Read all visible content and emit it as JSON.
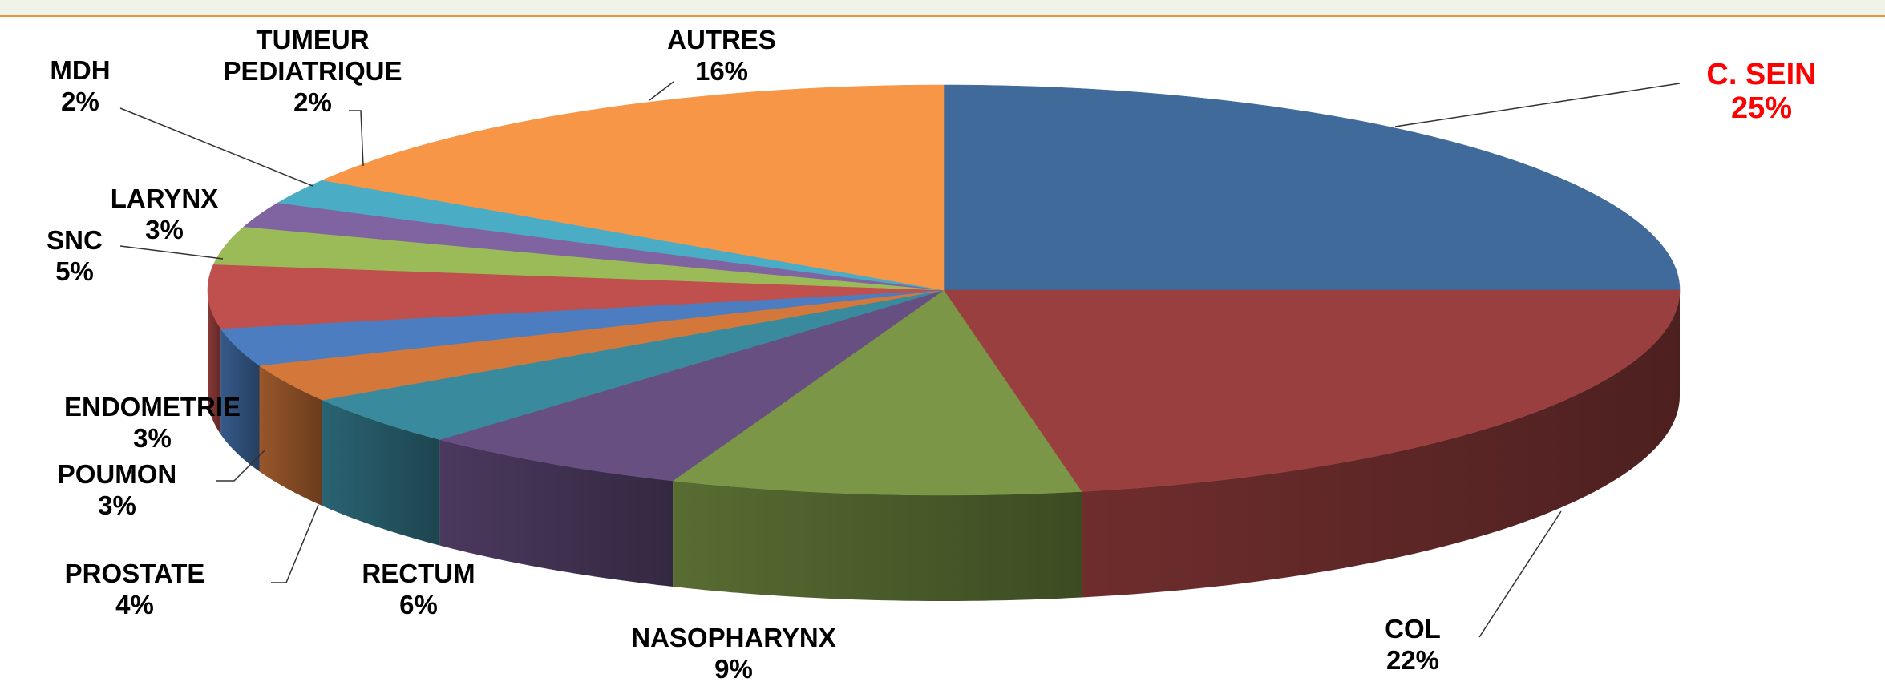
{
  "chart_data": {
    "type": "pie3d",
    "categories": [
      "C. SEIN",
      "COL",
      "NASOPHARYNX",
      "RECTUM",
      "PROSTATE",
      "POUMON",
      "ENDOMETRIE",
      "SNC",
      "LARYNX",
      "MDH",
      "TUMEUR PEDIATRIQUE",
      "AUTRES"
    ],
    "values": [
      25,
      22,
      9,
      6,
      4,
      3,
      3,
      5,
      3,
      2,
      2,
      16
    ],
    "value_labels": [
      "25%",
      "22%",
      "9%",
      "6%",
      "4%",
      "3%",
      "3%",
      "5%",
      "3%",
      "2%",
      "2%",
      "16%"
    ],
    "colors": [
      "#3f6a9a",
      "#9a3f3f",
      "#7a9646",
      "#684f82",
      "#3a8a9e",
      "#d3783a",
      "#4b7dc0",
      "#c0504d",
      "#9bbb59",
      "#8064a2",
      "#4bacc6",
      "#f79646"
    ],
    "label_colors": [
      "#ff0000",
      "#000000",
      "#000000",
      "#000000",
      "#000000",
      "#000000",
      "#000000",
      "#000000",
      "#000000",
      "#000000",
      "#000000",
      "#000000"
    ]
  }
}
